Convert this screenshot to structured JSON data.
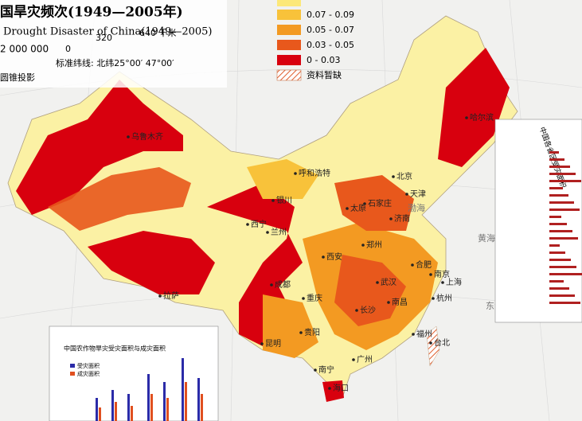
{
  "header": {
    "title": "国旱灾频次(1949—2005年)",
    "subtitle": "Drought Disaster of China(1949—2005)",
    "scale_ratio": "2 000 000",
    "scale_ticks": [
      "0",
      "320",
      "640 千米"
    ],
    "parallels": "标准纬线: 北纬25°00′ 47°00′",
    "projection": "圆锥投影"
  },
  "legend": [
    {
      "label": "0.07 - 0.09",
      "color": "#f8c23a"
    },
    {
      "label": "0.05 - 0.07",
      "color": "#f39a22"
    },
    {
      "label": "0.03 - 0.05",
      "color": "#e8581c"
    },
    {
      "label": "0 - 0.03",
      "color": "#d8000e"
    },
    {
      "label": "资料暂缺"
    }
  ],
  "cities": [
    "乌鲁木齐",
    "哈尔滨",
    "呼和浩特",
    "北京",
    "天津",
    "银川",
    "太原",
    "石家庄",
    "西宁",
    "兰州",
    "济南",
    "西安",
    "郑州",
    "成都",
    "武汉",
    "合肥",
    "南京",
    "上海",
    "拉萨",
    "重庆",
    "长沙",
    "南昌",
    "杭州",
    "福州",
    "贵阳",
    "昆明",
    "台北",
    "广州",
    "南宁",
    "海口"
  ],
  "seas": [
    "渤海",
    "黄海",
    "东海"
  ],
  "insets": {
    "bottom_title": "中国农作物旱灾受灾面积与成灾面积",
    "bottom_legend": [
      "受灾面积",
      "成灾面积"
    ],
    "right_title": "中国各省区受灾面积"
  }
}
